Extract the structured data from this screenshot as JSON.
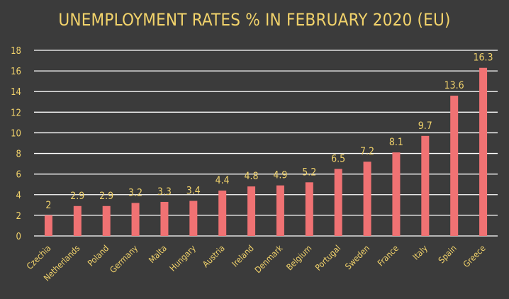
{
  "chart_data": {
    "type": "bar",
    "title": "UNEMPLOYMENT RATES % IN FEBRUARY 2020 (EU)",
    "xlabel": "",
    "ylabel": "",
    "categories": [
      "Czechia",
      "Netherlands",
      "Poland",
      "Germany",
      "Malta",
      "Hungary",
      "Austria",
      "Ireland",
      "Denmark",
      "Belgium",
      "Portugal",
      "Sweden",
      "France",
      "Italy",
      "Spain",
      "Greece"
    ],
    "values": [
      2,
      2.9,
      2.9,
      3.2,
      3.3,
      3.4,
      4.4,
      4.8,
      4.9,
      5.2,
      6.5,
      7.2,
      8.1,
      9.7,
      13.6,
      16.3
    ],
    "data_labels": [
      "2",
      "2.9",
      "2.9",
      "3.2",
      "3.3",
      "3.4",
      "4.4",
      "4.8",
      "4.9",
      "5.2",
      "6.5",
      "7.2",
      "8.1",
      "9.7",
      "13.6",
      "16.3"
    ],
    "ylim": [
      0,
      18
    ],
    "yticks": [
      "0",
      "2",
      "4",
      "6",
      "8",
      "10",
      "12",
      "14",
      "16",
      "18"
    ],
    "grid": true,
    "legend": "none",
    "colors": {
      "background": "#3b3b3b",
      "bar": "#f07273",
      "text": "#f2d36b",
      "grid": "#ffffff"
    }
  }
}
